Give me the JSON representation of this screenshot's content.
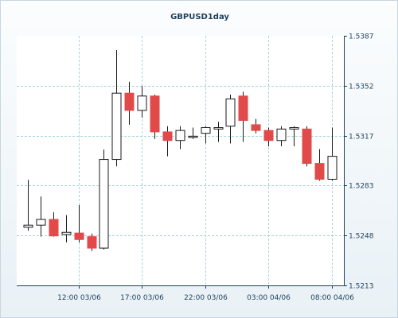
{
  "chart_data": {
    "type": "candlestick",
    "title": "GBPUSD1day",
    "y_axis": {
      "side": "right",
      "ticks": [
        1.5387,
        1.5352,
        1.5317,
        1.5283,
        1.5248,
        1.5213
      ],
      "tick_labels": [
        "1.5387",
        "1.5352",
        "1.5317",
        "1.5283",
        "1.5248",
        "1.5213"
      ],
      "ylim": [
        1.5213,
        1.5387
      ]
    },
    "x_axis": {
      "tick_labels": [
        "12:00 03/06",
        "17:00 03/06",
        "22:00 03/06",
        "03:00 04/06",
        "08:00 04/06"
      ],
      "tick_index": [
        4,
        9,
        14,
        19,
        24
      ]
    },
    "grid": true,
    "colors": {
      "bullish_body": "#ffffff",
      "bearish_body": "#e24a4a",
      "candle_border": "#1a1a1a",
      "grid": "#a6d6da",
      "axis": "#1e3f5c",
      "plot_background": "#ffffff"
    },
    "candles": [
      {
        "open": 1.52535,
        "high": 1.52866,
        "low": 1.5251,
        "close": 1.5255
      },
      {
        "open": 1.5255,
        "high": 1.5275,
        "low": 1.5247,
        "close": 1.5259
      },
      {
        "open": 1.5259,
        "high": 1.5264,
        "low": 1.5247,
        "close": 1.52475
      },
      {
        "open": 1.52485,
        "high": 1.5262,
        "low": 1.5243,
        "close": 1.525
      },
      {
        "open": 1.52495,
        "high": 1.5269,
        "low": 1.5243,
        "close": 1.5245
      },
      {
        "open": 1.5247,
        "high": 1.5249,
        "low": 1.5237,
        "close": 1.5239
      },
      {
        "open": 1.5239,
        "high": 1.53077,
        "low": 1.5238,
        "close": 1.53008
      },
      {
        "open": 1.53008,
        "high": 1.5377,
        "low": 1.5296,
        "close": 1.5347
      },
      {
        "open": 1.5347,
        "high": 1.5355,
        "low": 1.5325,
        "close": 1.5335
      },
      {
        "open": 1.5335,
        "high": 1.5352,
        "low": 1.533,
        "close": 1.5345
      },
      {
        "open": 1.5345,
        "high": 1.5346,
        "low": 1.5315,
        "close": 1.532
      },
      {
        "open": 1.532,
        "high": 1.5324,
        "low": 1.5303,
        "close": 1.5314
      },
      {
        "open": 1.5314,
        "high": 1.5324,
        "low": 1.5308,
        "close": 1.5321
      },
      {
        "open": 1.5317,
        "high": 1.5323,
        "low": 1.5315,
        "close": 1.5317
      },
      {
        "open": 1.5319,
        "high": 1.5324,
        "low": 1.5312,
        "close": 1.5323
      },
      {
        "open": 1.5322,
        "high": 1.5327,
        "low": 1.5313,
        "close": 1.5323
      },
      {
        "open": 1.5324,
        "high": 1.5346,
        "low": 1.5312,
        "close": 1.5343
      },
      {
        "open": 1.5345,
        "high": 1.5348,
        "low": 1.5313,
        "close": 1.5328
      },
      {
        "open": 1.5325,
        "high": 1.5329,
        "low": 1.5319,
        "close": 1.5321
      },
      {
        "open": 1.5321,
        "high": 1.5323,
        "low": 1.531,
        "close": 1.5314
      },
      {
        "open": 1.5314,
        "high": 1.5324,
        "low": 1.531,
        "close": 1.5322
      },
      {
        "open": 1.5322,
        "high": 1.5324,
        "low": 1.531,
        "close": 1.5323
      },
      {
        "open": 1.5322,
        "high": 1.5324,
        "low": 1.5296,
        "close": 1.5298
      },
      {
        "open": 1.5298,
        "high": 1.5308,
        "low": 1.5286,
        "close": 1.5287
      },
      {
        "open": 1.5287,
        "high": 1.5323,
        "low": 1.5286,
        "close": 1.5303
      }
    ]
  }
}
